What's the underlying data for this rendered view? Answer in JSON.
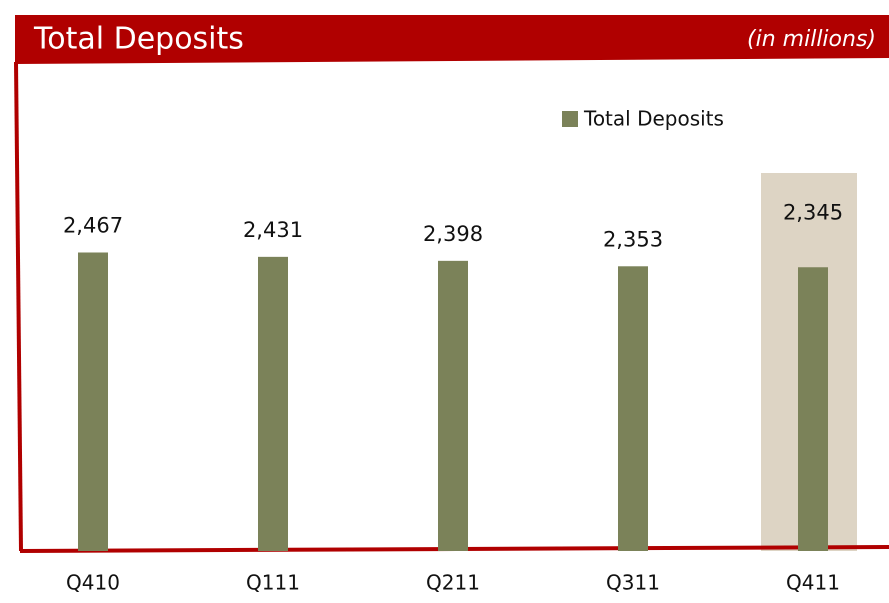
{
  "chart_data": {
    "type": "bar",
    "title": "Total Deposits",
    "subtitle": "(in millions)",
    "categories": [
      "Q410",
      "Q111",
      "Q211",
      "Q311",
      "Q411"
    ],
    "series": [
      {
        "name": "Total Deposits",
        "color": "#7b8259",
        "values": [
          2467,
          2431,
          2398,
          2353,
          2345
        ],
        "value_labels": [
          "2,467",
          "2,431",
          "2,398",
          "2,353",
          "2,345"
        ]
      }
    ],
    "ylim": [
      0,
      4000
    ],
    "highlight": 4,
    "highlight_color": "#ddd4c4",
    "legend": "top-right"
  }
}
